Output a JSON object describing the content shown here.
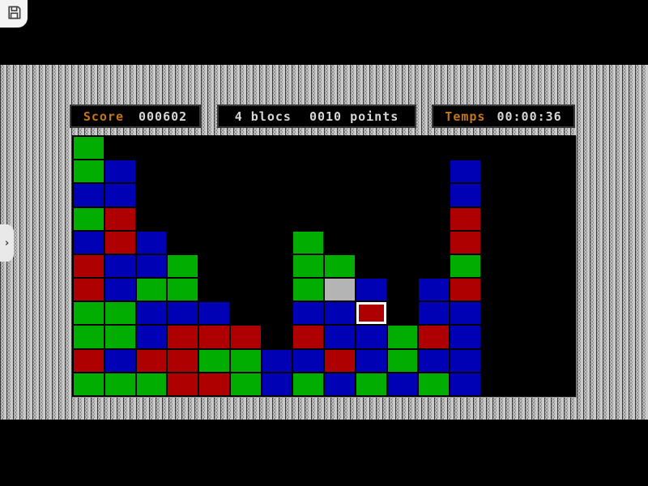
{
  "hud": {
    "score": {
      "label": "Score",
      "value": "000602"
    },
    "selection": {
      "blocks": "4 blocs",
      "points": "0010 points"
    },
    "time": {
      "label": "Temps",
      "value": "00:00:36"
    }
  },
  "icons": {
    "save": "floppy-disk-icon",
    "panel_toggle": "chevron-right-icon",
    "panel_toggle_glyph": "›"
  },
  "colors": {
    "label_orange": "#c3761b",
    "value_white": "#d6d6d6",
    "block_green": "#00ad00",
    "block_blue": "#0000b4",
    "block_red": "#ae0000",
    "block_gray": "#b4b4b4",
    "cursor_border": "#ffffff",
    "field_bg": "#000000",
    "texture_base": "#a8a8a8"
  },
  "board": {
    "columns": 16,
    "rows": 11,
    "legend": {
      "G": "green",
      "B": "blue",
      "R": "red",
      "X": "gray",
      "C": "red-selected",
      ".": "empty"
    },
    "grid": [
      "G...............",
      "GB..........B...",
      "BB..........B...",
      "GR..........R...",
      "BRB....G....R...",
      "RBBG...GG...G...",
      "RBGG...GXB.BR...",
      "GGBBB..BBC.BB...",
      "GGBRRR.RBBGRB...",
      "RBRRGGBBRBGBB...",
      "GGGRRGBGBGBGB..."
    ]
  }
}
